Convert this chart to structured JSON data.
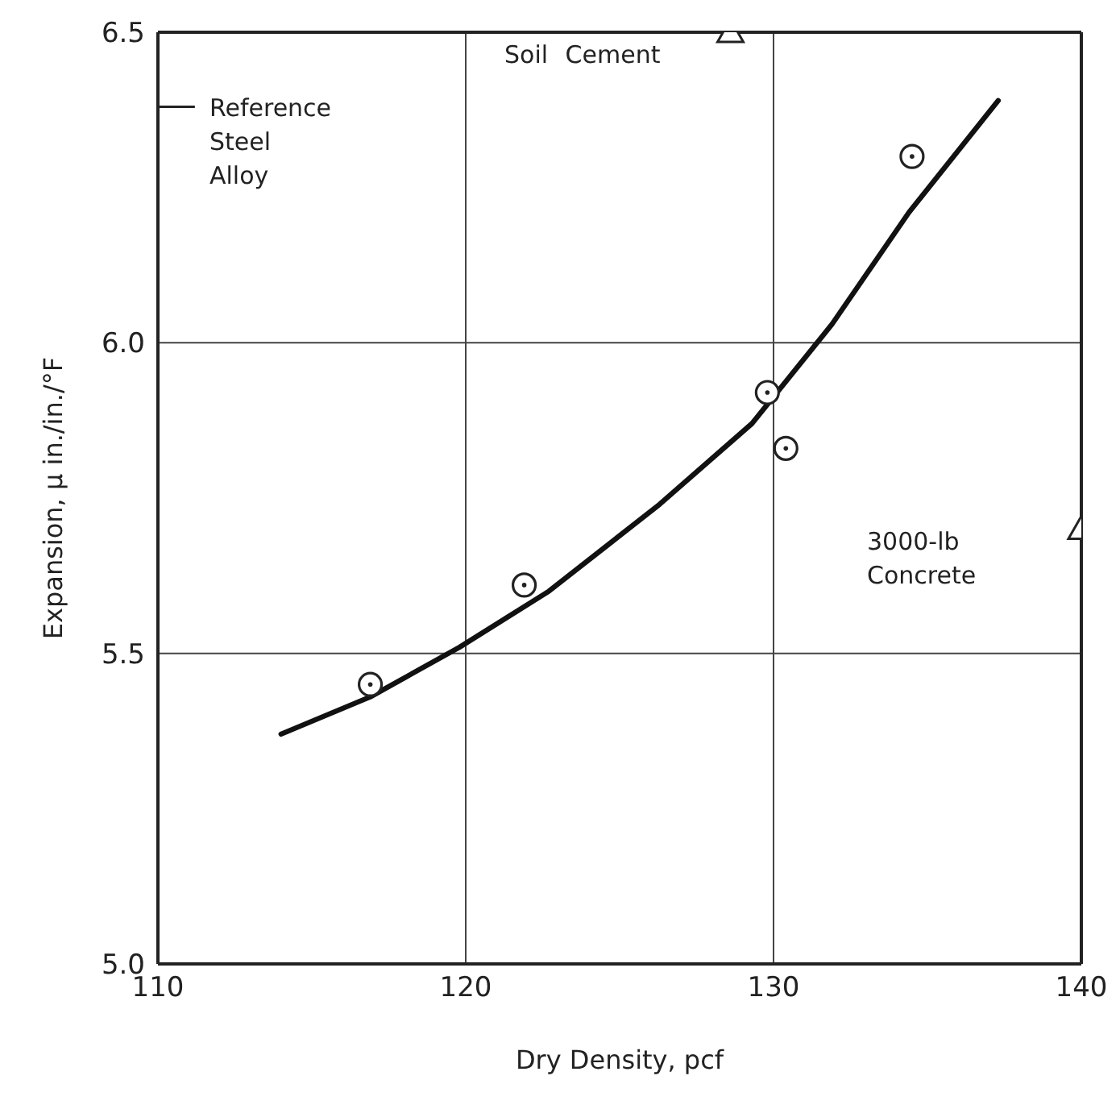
{
  "chart_data": {
    "type": "scatter",
    "xlabel": "Dry Density, pcf",
    "ylabel": "Expansion, μ in./in./°F",
    "xlim": [
      110,
      140
    ],
    "xticks": [
      110,
      120,
      130,
      140
    ],
    "ylim": [
      5.0,
      6.5
    ],
    "yticks": [
      {
        "value": 5.0,
        "label": "5.0"
      },
      {
        "value": 5.5,
        "label": "5.5"
      },
      {
        "value": 6.0,
        "label": "6.0"
      },
      {
        "value": 6.5,
        "label": "6.5"
      }
    ],
    "grid": true,
    "legend": false,
    "series": [
      {
        "type": "line",
        "color": "#111111",
        "marker": "none",
        "line_style": "solid",
        "x": [
          114,
          116.9,
          119.8,
          122.7,
          126.3,
          129.3,
          131.9,
          134.4,
          137.3
        ],
        "values": [
          5.37,
          5.43,
          5.51,
          5.6,
          5.74,
          5.87,
          6.03,
          6.21,
          6.39
        ]
      },
      {
        "color": "#222222",
        "marker": "circle",
        "x": [
          116.9,
          121.9,
          129.8,
          130.4,
          134.5
        ],
        "values": [
          5.45,
          5.61,
          5.92,
          5.83,
          6.3
        ]
      },
      {
        "color": "#222222",
        "marker": "triangle",
        "x": [
          128.6,
          140
        ],
        "values": [
          6.5,
          5.7
        ]
      }
    ],
    "ref_lines": [
      {
        "axis": "y",
        "value": 6.38,
        "label": "Reference Steel Alloy"
      }
    ],
    "annotations": [
      "Soil Cement",
      "3000-lb Concrete"
    ]
  }
}
